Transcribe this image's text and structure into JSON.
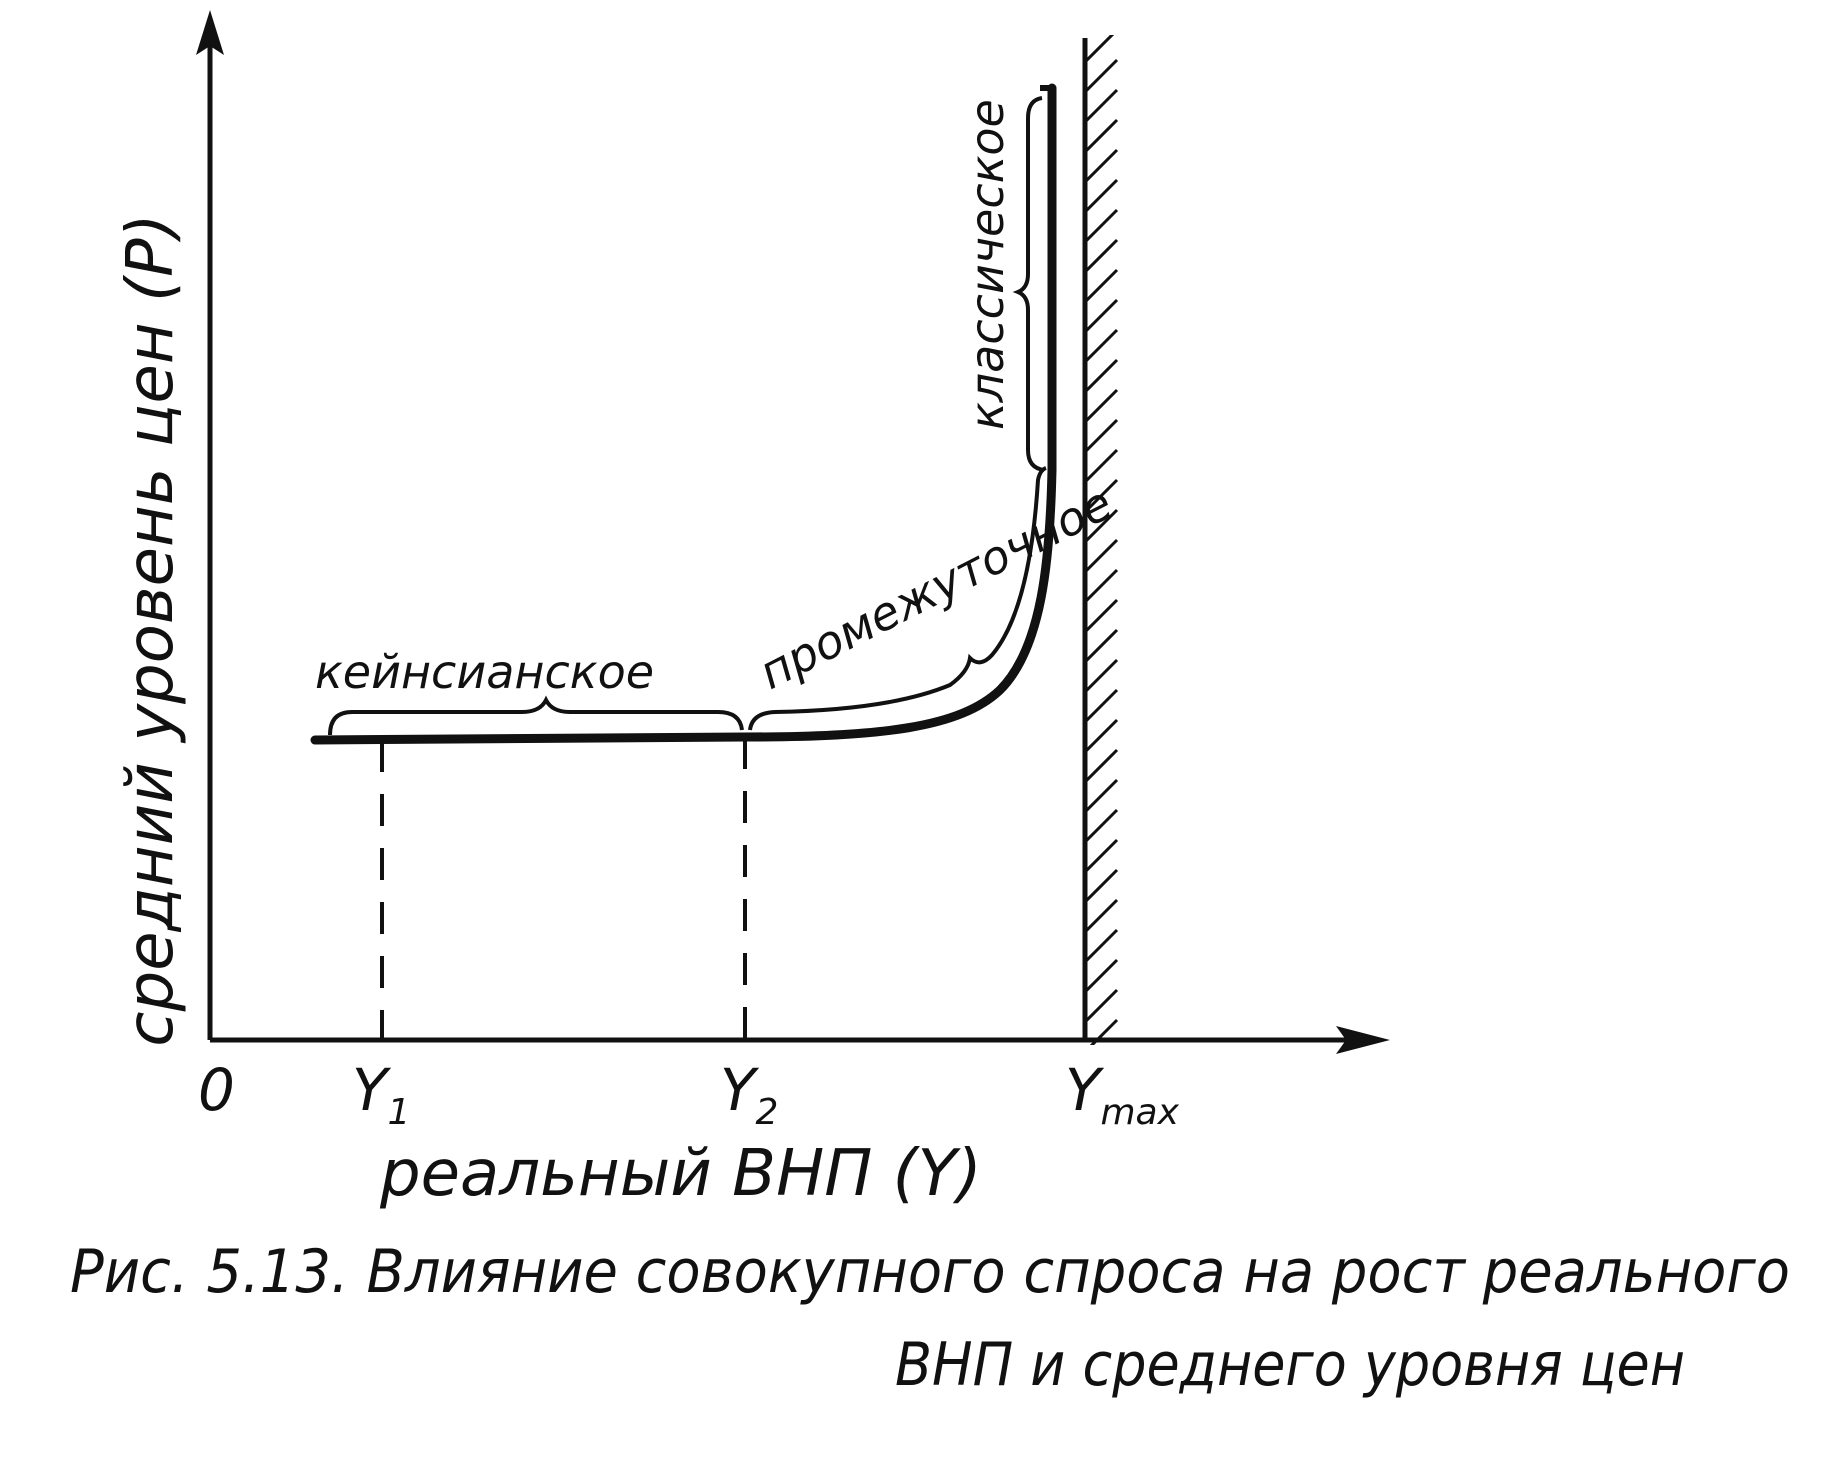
{
  "diagram": {
    "y_axis_label": "средний уровень цен (P)",
    "x_axis_label": "реальный ВНП (Y)",
    "origin_label": "0",
    "ticks": {
      "y1": {
        "main": "Y",
        "sub": "1"
      },
      "y2": {
        "main": "Y",
        "sub": "2"
      },
      "ymax": {
        "main": "Y",
        "sub": "max"
      }
    },
    "regions": {
      "keynesian": "кейнсианское",
      "intermediate": "промежуточное",
      "classical": "классическое"
    }
  },
  "caption": {
    "line1": "Рис. 5.13. Влияние совокупного спроса на рост реального",
    "line2": "ВНП и среднего уровня цен"
  }
}
